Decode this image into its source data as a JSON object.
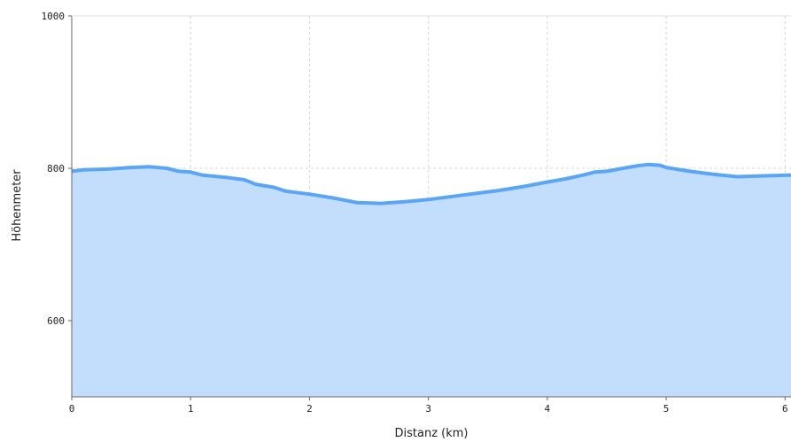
{
  "chart_data": {
    "type": "area",
    "xlabel": "Distanz (km)",
    "ylabel": "Höhenmeter",
    "xlim": [
      0,
      6.05
    ],
    "ylim": [
      500,
      1000
    ],
    "x_ticks": [
      0,
      1,
      2,
      3,
      4,
      5,
      6
    ],
    "x_tick_labels": [
      "0",
      "1",
      "2",
      "3",
      "4",
      "5",
      "6"
    ],
    "y_ticks": [
      600,
      800,
      1000
    ],
    "y_tick_labels": [
      "600",
      "800",
      "1000"
    ],
    "grid": true,
    "series": [
      {
        "x": [
          0,
          0.1,
          0.3,
          0.5,
          0.65,
          0.8,
          0.9,
          1.0,
          1.1,
          1.3,
          1.45,
          1.55,
          1.7,
          1.8,
          2.0,
          2.2,
          2.4,
          2.6,
          2.8,
          3.0,
          3.2,
          3.4,
          3.6,
          3.8,
          4.0,
          4.15,
          4.3,
          4.4,
          4.5,
          4.6,
          4.75,
          4.85,
          4.95,
          5.0,
          5.2,
          5.4,
          5.6,
          5.8,
          6.05
        ],
        "y": [
          796,
          798,
          799,
          801,
          802,
          800,
          796,
          795,
          791,
          788,
          785,
          779,
          775,
          770,
          766,
          761,
          755,
          754,
          756,
          759,
          763,
          767,
          771,
          776,
          782,
          786,
          791,
          795,
          796,
          799,
          803,
          805,
          804,
          801,
          796,
          792,
          789,
          790,
          791
        ]
      }
    ],
    "colors": {
      "line": "#5aa6f5",
      "fill": "#c2defc",
      "grid": "#d4d4d4",
      "axis": "#666666"
    }
  }
}
